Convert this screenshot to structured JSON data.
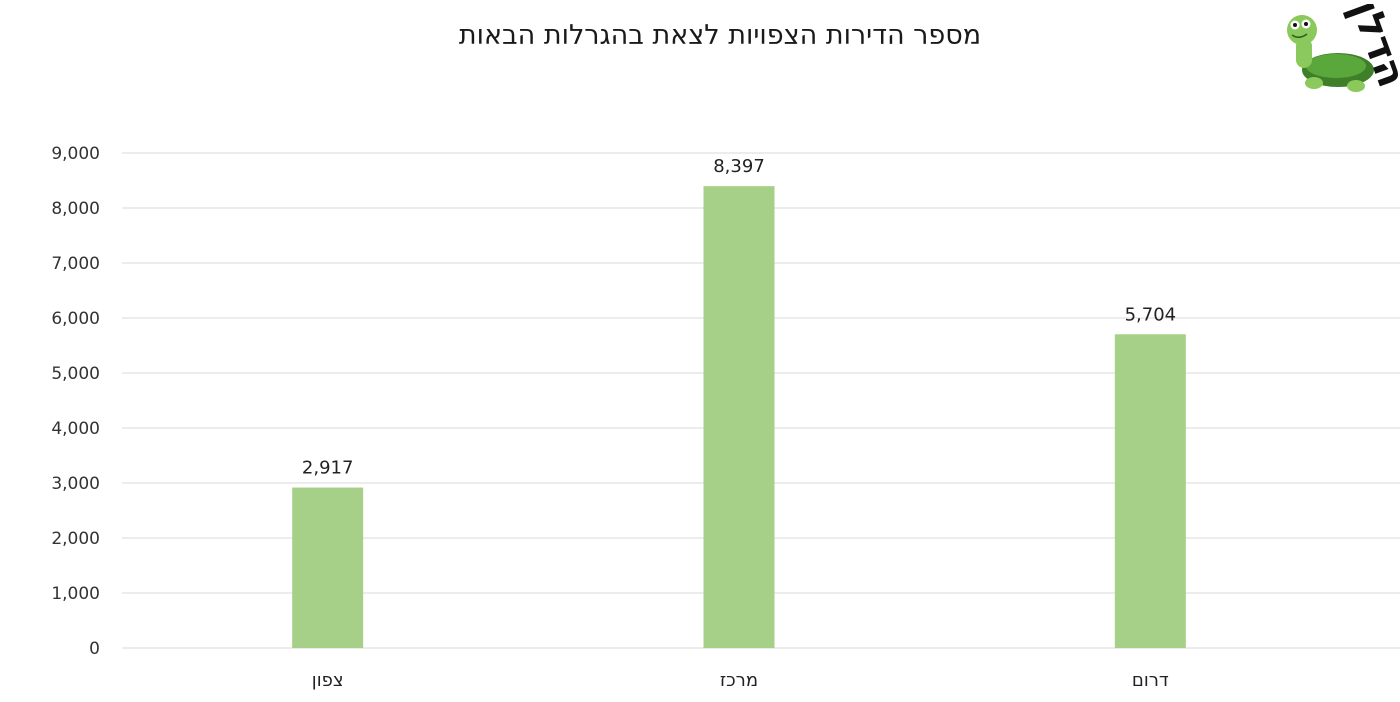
{
  "chart_data": {
    "type": "bar",
    "title": "מספר הדירות הצפויות לצאת בהגרלות הבאות",
    "categories": [
      "צפון",
      "מרכז",
      "דרום"
    ],
    "values": [
      2917,
      8397,
      5704
    ],
    "data_labels": [
      "2,917",
      "8,397",
      "5,704"
    ],
    "y_ticks": [
      "0",
      "1,000",
      "2,000",
      "3,000",
      "4,000",
      "5,000",
      "6,000",
      "7,000",
      "8,000",
      "9,000"
    ],
    "ylim": [
      0,
      9000
    ],
    "grid": true,
    "legend": "none",
    "bar_color": "#a6cf87",
    "grid_color": "#d9d9d9"
  },
  "logo": {
    "text": "הדלן",
    "icon": "turtle-icon"
  }
}
